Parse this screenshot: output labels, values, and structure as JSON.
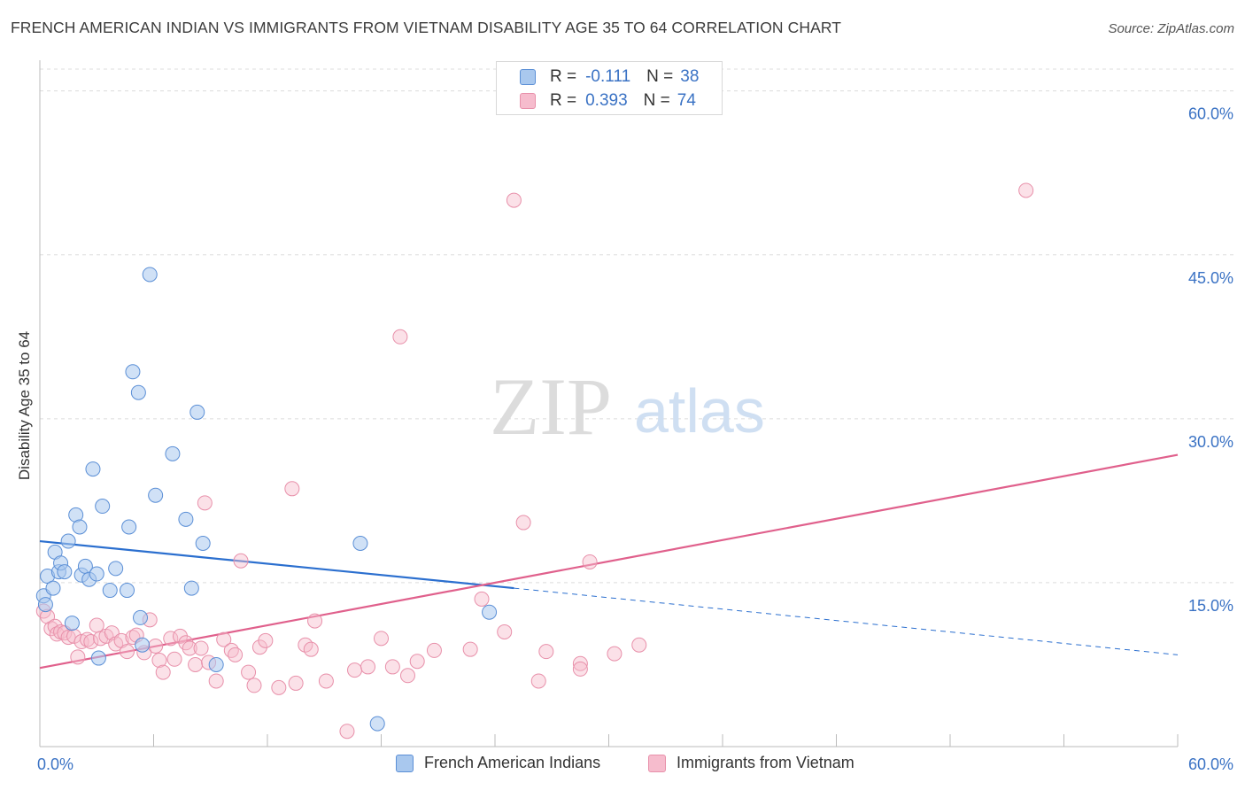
{
  "header": {
    "title": "FRENCH AMERICAN INDIAN VS IMMIGRANTS FROM VIETNAM DISABILITY AGE 35 TO 64 CORRELATION CHART",
    "source": "Source: ZipAtlas.com"
  },
  "watermark": {
    "zip": "ZIP",
    "atlas": "atlas"
  },
  "legend": {
    "r_label": "R =",
    "n_label": "N =",
    "series1": {
      "r": "-0.111",
      "n": "38"
    },
    "series2": {
      "r": "0.393",
      "n": "74"
    }
  },
  "bottom_legend": {
    "series1": "French American Indians",
    "series2": "Immigrants from Vietnam"
  },
  "colors": {
    "blue_fill": "#a9c8ee",
    "blue_stroke": "#5b8fd6",
    "blue_line": "#2b6fcf",
    "pink_fill": "#f6bccd",
    "pink_stroke": "#e890aa",
    "pink_line": "#e0608c",
    "accent_text": "#3a72c4"
  },
  "chart_data": {
    "type": "scatter",
    "title": "FRENCH AMERICAN INDIAN VS IMMIGRANTS FROM VIETNAM DISABILITY AGE 35 TO 64 CORRELATION CHART",
    "xlabel": "",
    "ylabel": "Disability Age 35 to 64",
    "xlim": [
      0,
      60
    ],
    "ylim": [
      0,
      62
    ],
    "x_tick_labels": [
      "0.0%",
      "60.0%"
    ],
    "y_ticks": [
      15,
      30,
      45,
      60
    ],
    "y_tick_labels": [
      "15.0%",
      "30.0%",
      "45.0%",
      "60.0%"
    ],
    "series": [
      {
        "name": "French American Indians",
        "r": -0.111,
        "n": 38,
        "trend": {
          "x0": 0,
          "y0": 18.8,
          "x1": 25,
          "y1": 14.5,
          "dashed_to_x": 60,
          "dashed_to_y": 8.4
        },
        "points": [
          [
            0.2,
            13.8
          ],
          [
            0.3,
            13.0
          ],
          [
            0.4,
            15.6
          ],
          [
            0.7,
            14.5
          ],
          [
            0.8,
            17.8
          ],
          [
            1.0,
            16.0
          ],
          [
            1.1,
            16.8
          ],
          [
            1.3,
            16.0
          ],
          [
            1.5,
            18.8
          ],
          [
            1.7,
            11.3
          ],
          [
            1.9,
            21.2
          ],
          [
            2.1,
            20.1
          ],
          [
            2.2,
            15.7
          ],
          [
            2.4,
            16.5
          ],
          [
            2.6,
            15.3
          ],
          [
            2.8,
            25.4
          ],
          [
            3.0,
            15.8
          ],
          [
            3.1,
            8.1
          ],
          [
            3.3,
            22.0
          ],
          [
            3.7,
            14.3
          ],
          [
            4.0,
            16.3
          ],
          [
            4.6,
            14.3
          ],
          [
            4.7,
            20.1
          ],
          [
            4.9,
            34.3
          ],
          [
            5.2,
            32.4
          ],
          [
            5.3,
            11.8
          ],
          [
            5.4,
            9.3
          ],
          [
            5.8,
            43.2
          ],
          [
            6.1,
            23.0
          ],
          [
            7.0,
            26.8
          ],
          [
            7.7,
            20.8
          ],
          [
            8.0,
            14.5
          ],
          [
            8.3,
            30.6
          ],
          [
            8.6,
            18.6
          ],
          [
            9.3,
            7.5
          ],
          [
            16.9,
            18.6
          ],
          [
            23.7,
            12.3
          ],
          [
            17.8,
            2.1
          ]
        ]
      },
      {
        "name": "Immigrants from Vietnam",
        "r": 0.393,
        "n": 74,
        "trend": {
          "x0": 0,
          "y0": 7.2,
          "x1": 60,
          "y1": 26.7
        },
        "points": [
          [
            0.2,
            12.4
          ],
          [
            0.4,
            11.9
          ],
          [
            0.6,
            10.8
          ],
          [
            0.8,
            11.0
          ],
          [
            0.9,
            10.3
          ],
          [
            1.1,
            10.5
          ],
          [
            1.3,
            10.4
          ],
          [
            1.5,
            10.0
          ],
          [
            1.8,
            10.1
          ],
          [
            2.0,
            8.2
          ],
          [
            2.2,
            9.6
          ],
          [
            2.5,
            9.8
          ],
          [
            2.7,
            9.6
          ],
          [
            3.0,
            11.1
          ],
          [
            3.2,
            9.9
          ],
          [
            3.5,
            10.1
          ],
          [
            3.8,
            10.4
          ],
          [
            4.0,
            9.4
          ],
          [
            4.3,
            9.7
          ],
          [
            4.6,
            8.7
          ],
          [
            4.9,
            10.0
          ],
          [
            5.1,
            10.2
          ],
          [
            5.5,
            8.6
          ],
          [
            5.8,
            11.6
          ],
          [
            6.1,
            9.2
          ],
          [
            6.3,
            7.9
          ],
          [
            6.5,
            6.8
          ],
          [
            6.9,
            9.9
          ],
          [
            7.1,
            8.0
          ],
          [
            7.4,
            10.1
          ],
          [
            7.7,
            9.5
          ],
          [
            7.9,
            9.0
          ],
          [
            8.2,
            7.5
          ],
          [
            8.5,
            9.0
          ],
          [
            8.9,
            7.7
          ],
          [
            9.3,
            6.0
          ],
          [
            9.7,
            9.8
          ],
          [
            10.1,
            8.8
          ],
          [
            10.3,
            8.4
          ],
          [
            10.6,
            17.0
          ],
          [
            11.0,
            6.8
          ],
          [
            11.3,
            5.6
          ],
          [
            11.6,
            9.1
          ],
          [
            11.9,
            9.7
          ],
          [
            12.6,
            5.4
          ],
          [
            13.3,
            23.6
          ],
          [
            13.5,
            5.8
          ],
          [
            14.0,
            9.3
          ],
          [
            14.3,
            8.9
          ],
          [
            14.5,
            11.5
          ],
          [
            15.1,
            6.0
          ],
          [
            16.2,
            1.4
          ],
          [
            16.6,
            7.0
          ],
          [
            17.3,
            7.3
          ],
          [
            18.0,
            9.9
          ],
          [
            18.6,
            7.3
          ],
          [
            19.0,
            37.5
          ],
          [
            19.4,
            6.5
          ],
          [
            19.9,
            7.8
          ],
          [
            20.8,
            8.8
          ],
          [
            22.7,
            8.9
          ],
          [
            23.3,
            13.5
          ],
          [
            24.5,
            10.5
          ],
          [
            25.0,
            50.0
          ],
          [
            25.5,
            20.5
          ],
          [
            26.3,
            6.0
          ],
          [
            26.7,
            8.7
          ],
          [
            28.5,
            7.6
          ],
          [
            28.5,
            7.1
          ],
          [
            29.0,
            16.9
          ],
          [
            30.3,
            8.5
          ],
          [
            31.6,
            9.3
          ],
          [
            52.0,
            50.9
          ],
          [
            8.7,
            22.3
          ]
        ]
      }
    ]
  }
}
